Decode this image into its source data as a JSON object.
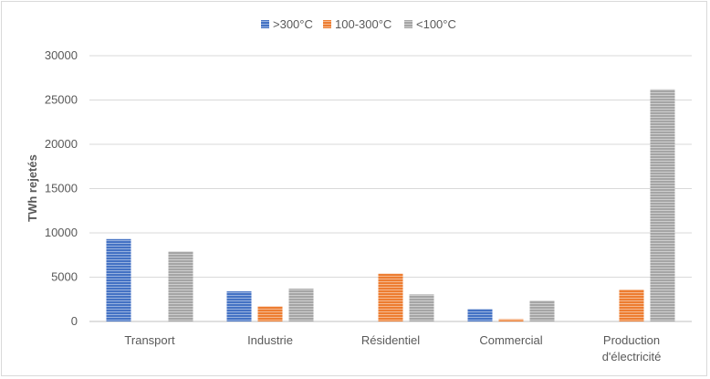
{
  "chart_data": {
    "type": "bar",
    "title": "",
    "xlabel": "",
    "ylabel": "TWh rejetés",
    "ylim": [
      0,
      30000
    ],
    "yticks": [
      "0",
      "5000",
      "10000",
      "15000",
      "20000",
      "25000",
      "30000"
    ],
    "grid": true,
    "legend_position": "top",
    "categories": [
      [
        "Transport"
      ],
      [
        "Industrie"
      ],
      [
        "Résidentiel"
      ],
      [
        "Commercial"
      ],
      [
        "Production",
        "d'électricité"
      ]
    ],
    "series": [
      {
        "name": ">300°C",
        "color": "#4472C4",
        "values": [
          9300,
          3400,
          0,
          1400,
          0
        ]
      },
      {
        "name": "100-300°C",
        "color": "#ED7D31",
        "values": [
          0,
          1700,
          5400,
          250,
          3600
        ]
      },
      {
        "name": "<100°C",
        "color": "#A5A5A5",
        "values": [
          7900,
          3700,
          3050,
          2350,
          26200
        ]
      }
    ]
  }
}
